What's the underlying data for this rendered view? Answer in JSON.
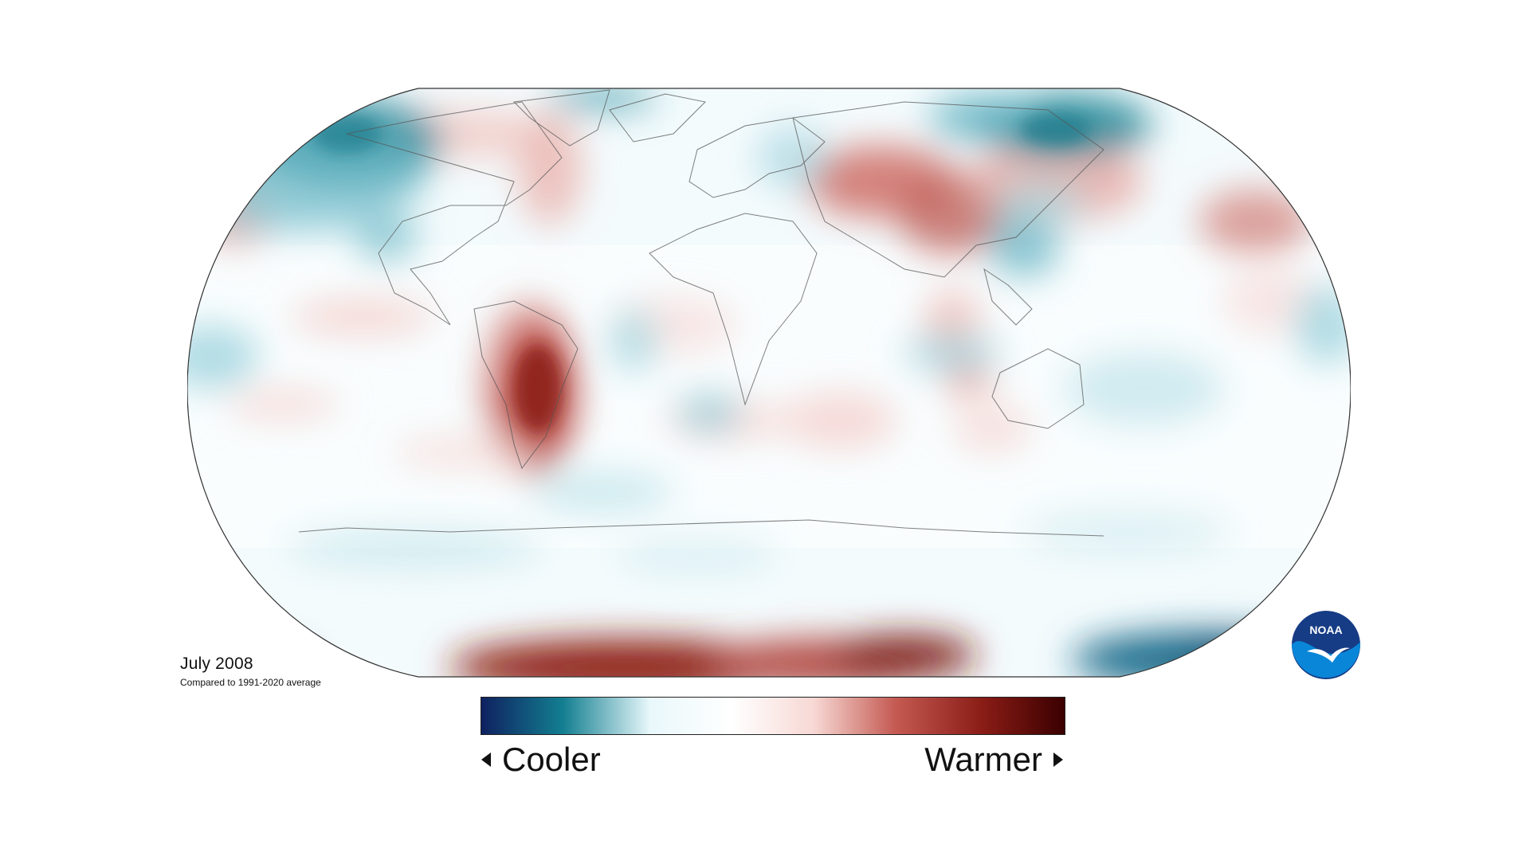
{
  "map": {
    "caption_date": "July 2008",
    "caption_sub": "Compared to 1991-2020 average"
  },
  "legend": {
    "left_label": "Cooler",
    "right_label": "Warmer",
    "colors": [
      "#0f2160",
      "#137f91",
      "#e9f8fb",
      "#ffffff",
      "#f7d8d4",
      "#c45a52",
      "#8a1c16",
      "#3a0000"
    ]
  },
  "logo": {
    "text": "NOAA",
    "colors": [
      "#163c85",
      "#0a86d8",
      "#ffffff"
    ]
  }
}
